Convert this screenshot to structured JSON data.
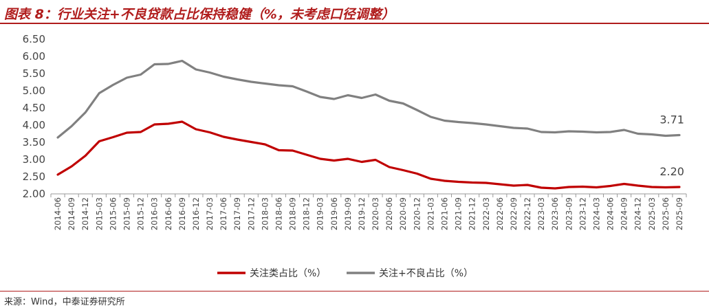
{
  "header": {
    "title": "图表 8：行业关注+不良贷款占比保持稳健（%，未考虑口径调整）"
  },
  "footer": {
    "source": "来源：Wind，中泰证券研究所"
  },
  "chart_data": {
    "type": "line",
    "title": "图表 8：行业关注+不良贷款占比保持稳健（%，未考虑口径调整）",
    "xlabel": "",
    "ylabel": "",
    "ylim": [
      2.0,
      6.5
    ],
    "yticks": [
      "2.00",
      "2.50",
      "3.00",
      "3.50",
      "4.00",
      "4.50",
      "5.00",
      "5.50",
      "6.00",
      "6.50"
    ],
    "grid": false,
    "legend_position": "bottom",
    "categories": [
      "2014-06",
      "2014-09",
      "2014-12",
      "2015-03",
      "2015-06",
      "2015-09",
      "2015-12",
      "2016-03",
      "2016-06",
      "2016-09",
      "2016-12",
      "2017-03",
      "2017-06",
      "2017-09",
      "2017-12",
      "2018-03",
      "2018-06",
      "2018-09",
      "2018-12",
      "2019-03",
      "2019-06",
      "2019-09",
      "2019-12",
      "2020-03",
      "2020-06",
      "2020-09",
      "2020-12",
      "2021-03",
      "2021-06",
      "2021-09",
      "2021-12",
      "2022-03",
      "2022-06",
      "2022-09",
      "2022-12",
      "2023-03",
      "2023-06",
      "2023-09",
      "2023-12",
      "2024-03",
      "2024-06",
      "2024-09",
      "2024-12",
      "2025-03",
      "2025-06",
      "2025-09"
    ],
    "series": [
      {
        "name": "关注类占比（%）",
        "color": "#c00000",
        "values": [
          2.56,
          2.8,
          3.11,
          3.53,
          3.65,
          3.78,
          3.8,
          4.02,
          4.04,
          4.1,
          3.88,
          3.79,
          3.66,
          3.58,
          3.51,
          3.44,
          3.27,
          3.26,
          3.14,
          3.02,
          2.97,
          3.02,
          2.93,
          2.99,
          2.78,
          2.69,
          2.59,
          2.44,
          2.38,
          2.35,
          2.33,
          2.32,
          2.28,
          2.24,
          2.26,
          2.18,
          2.16,
          2.2,
          2.21,
          2.19,
          2.23,
          2.29,
          2.24,
          2.2,
          2.19,
          2.2
        ],
        "end_label": "2.20"
      },
      {
        "name": "关注+不良占比（%）",
        "color": "#808080",
        "values": [
          3.64,
          3.97,
          4.37,
          4.93,
          5.17,
          5.38,
          5.47,
          5.77,
          5.78,
          5.87,
          5.62,
          5.53,
          5.41,
          5.33,
          5.26,
          5.21,
          5.16,
          5.13,
          4.98,
          4.82,
          4.76,
          4.87,
          4.79,
          4.89,
          4.71,
          4.63,
          4.44,
          4.24,
          4.13,
          4.09,
          4.06,
          4.02,
          3.97,
          3.92,
          3.9,
          3.8,
          3.79,
          3.82,
          3.81,
          3.79,
          3.8,
          3.86,
          3.75,
          3.73,
          3.69,
          3.71
        ],
        "end_label": "3.71"
      }
    ]
  }
}
